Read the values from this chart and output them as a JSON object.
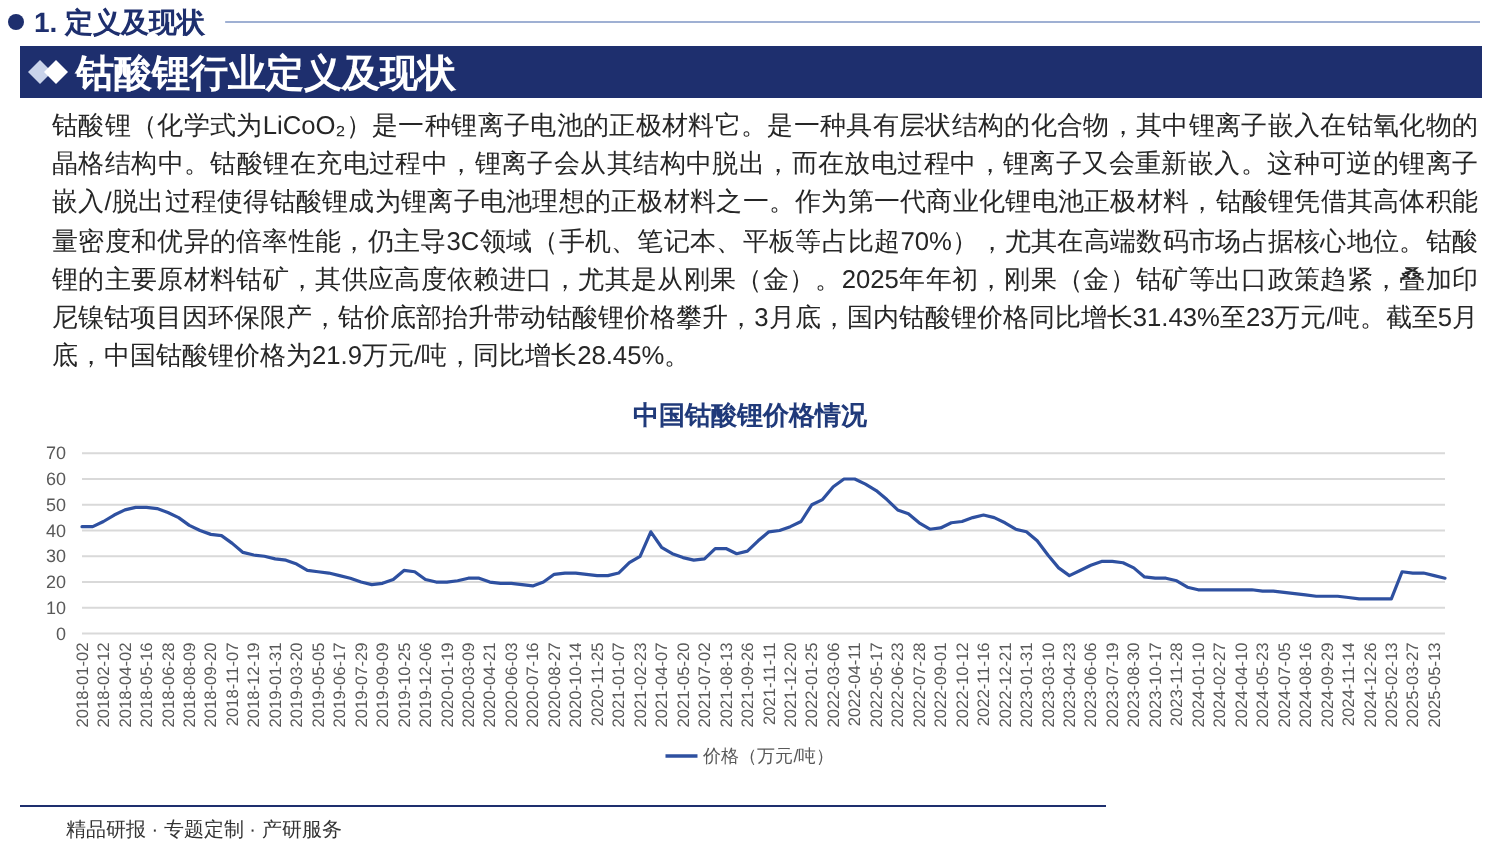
{
  "chart_data": {
    "type": "line",
    "title": "中国钴酸锂价格情况",
    "annotations": [
      "1. 定义及现状",
      "钴酸锂行业定义及现状",
      "钴酸锂（化学式为LiCoO₂）是一种锂离子电池的正极材料它。是一种具有层状结构的化合物，其中锂离子嵌入在钴氧化物的晶格结构中。钴酸锂在充电过程中，锂离子会从其结构中脱出，而在放电过程中，锂离子又会重新嵌入。这种可逆的锂离子嵌入/脱出过程使得钴酸锂成为锂离子电池理想的正极材料之一。作为第一代商业化锂电池正极材料，钴酸锂凭借其高体积能量密度和优异的倍率性能，仍主导3C领域（手机、笔记本、平板等占比超70%），尤其在高端数码市场占据核心地位。钴酸锂的主要原材料钴矿，其供应高度依赖进口，尤其是从刚果（金）。2025年年初，刚果（金）钴矿等出口政策趋紧，叠加印尼镍钴项目因环保限产，钴价底部抬升带动钴酸锂价格攀升，3月底，国内钴酸锂价格同比增长31.43%至23万元/吨。截至5月底，中国钴酸锂价格为21.9万元/吨，同比增长28.45%。",
      "精品研报 · 专题定制 · 产研服务"
    ],
    "categories": [
      "2018-01-02",
      null,
      "2018-02-12",
      null,
      "2018-04-02",
      null,
      "2018-05-16",
      null,
      "2018-06-28",
      null,
      "2018-08-09",
      null,
      "2018-09-20",
      null,
      "2018-11-07",
      null,
      "2018-12-19",
      null,
      "2019-01-31",
      null,
      "2019-03-20",
      null,
      "2019-05-05",
      null,
      "2019-06-17",
      null,
      "2019-07-29",
      null,
      "2019-09-09",
      null,
      "2019-10-25",
      null,
      "2019-12-06",
      null,
      "2020-01-19",
      null,
      "2020-03-09",
      null,
      "2020-04-21",
      null,
      "2020-06-03",
      null,
      "2020-07-16",
      null,
      "2020-08-27",
      null,
      "2020-10-14",
      null,
      "2020-11-25",
      null,
      "2021-01-07",
      null,
      "2021-02-23",
      null,
      "2021-04-07",
      null,
      "2021-05-20",
      null,
      "2021-07-02",
      null,
      "2021-08-13",
      null,
      "2021-09-26",
      null,
      "2021-11-11",
      null,
      "2021-12-20",
      null,
      "2022-01-25",
      null,
      "2022-03-06",
      null,
      "2022-04-11",
      null,
      "2022-05-17",
      null,
      "2022-06-23",
      null,
      "2022-07-28",
      null,
      "2022-09-01",
      null,
      "2022-10-12",
      null,
      "2022-11-16",
      null,
      "2022-12-21",
      null,
      "2023-01-31",
      null,
      "2023-03-10",
      null,
      "2023-04-23",
      null,
      "2023-06-06",
      null,
      "2023-07-19",
      null,
      "2023-08-30",
      null,
      "2023-10-17",
      null,
      "2023-11-28",
      null,
      "2024-01-10",
      null,
      "2024-02-27",
      null,
      "2024-04-10",
      null,
      "2024-05-23",
      null,
      "2024-07-05",
      null,
      "2024-08-16",
      null,
      "2024-09-29",
      null,
      "2024-11-14",
      null,
      "2024-12-26",
      null,
      "2025-02-13",
      null,
      "2025-03-27",
      null,
      "2025-05-13",
      null
    ],
    "series": [
      {
        "name": "价格（万元/吨）",
        "color": "#2e50a0",
        "values": [
          41.5,
          41.5,
          43.5,
          46,
          48,
          49,
          49,
          48.5,
          47,
          45,
          42,
          40,
          38.5,
          38,
          35,
          31.5,
          30.5,
          30,
          29,
          28.5,
          27,
          24.5,
          24,
          23.5,
          22.5,
          21.5,
          20,
          19,
          19.5,
          21,
          24.5,
          24,
          21,
          20,
          20,
          20.5,
          21.5,
          21.5,
          20,
          19.5,
          19.5,
          19,
          18.5,
          20,
          23,
          23.5,
          23.5,
          23,
          22.5,
          22.5,
          23.5,
          27.5,
          30,
          39.5,
          33.5,
          31,
          29.5,
          28.5,
          29,
          33,
          33,
          31,
          32,
          36,
          39.5,
          40,
          41.5,
          43.5,
          50,
          52,
          57,
          60,
          60,
          58,
          55.5,
          52,
          48,
          46.5,
          43,
          40.5,
          41,
          43,
          43.5,
          45,
          46,
          45,
          43,
          40.5,
          39.5,
          36,
          30.5,
          25.5,
          22.5,
          24.5,
          26.5,
          28,
          28,
          27.5,
          25.5,
          22,
          21.5,
          21.5,
          20.5,
          18,
          17,
          17,
          17,
          17,
          17,
          17,
          16.5,
          16.5,
          16,
          15.5,
          15,
          14.5,
          14.5,
          14.5,
          14,
          13.5,
          13.5,
          13.5,
          13.5,
          24,
          23.5,
          23.5,
          22.5,
          21.5
        ]
      }
    ],
    "ylim": [
      0,
      70
    ],
    "yticks": [
      0,
      10,
      20,
      30,
      40,
      50,
      60,
      70
    ],
    "grid": "y",
    "legend": "bottom"
  }
}
